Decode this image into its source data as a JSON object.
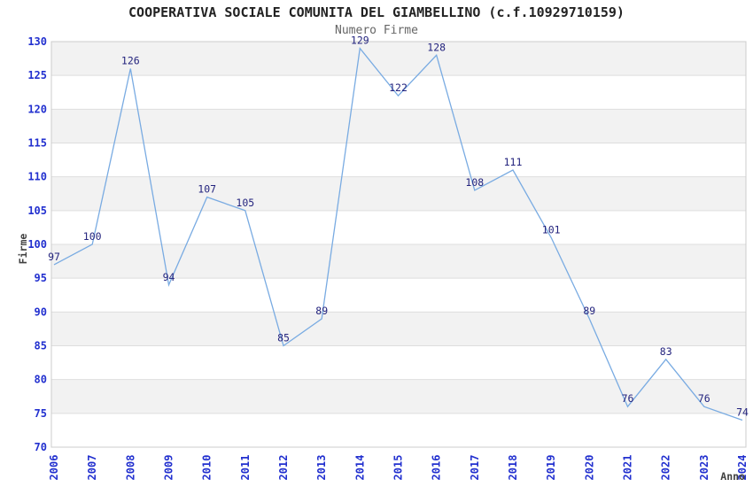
{
  "title": "COOPERATIVA SOCIALE COMUNITA DEL GIAMBELLINO (c.f.10929710159)",
  "subtitle": "Numero Firme",
  "chart_data": {
    "type": "line",
    "title": "COOPERATIVA SOCIALE COMUNITA DEL GIAMBELLINO (c.f.10929710159)",
    "subtitle": "Numero Firme",
    "xlabel": "Anno",
    "ylabel": "Firme",
    "categories": [
      "2006",
      "2007",
      "2008",
      "2009",
      "2010",
      "2011",
      "2012",
      "2013",
      "2014",
      "2015",
      "2016",
      "2017",
      "2018",
      "2019",
      "2020",
      "2021",
      "2022",
      "2023",
      "2024"
    ],
    "values": [
      97,
      100,
      126,
      94,
      107,
      105,
      85,
      89,
      129,
      122,
      128,
      108,
      111,
      101,
      89,
      76,
      83,
      76,
      74
    ],
    "ylim": [
      70,
      130
    ],
    "ytick_step": 5,
    "yticks": [
      70,
      75,
      80,
      85,
      90,
      95,
      100,
      105,
      110,
      115,
      120,
      125,
      130
    ],
    "grid": "horizontal-bands",
    "legend": "none",
    "point_labels_visible": true,
    "x_tick_rotation": -90,
    "colors": {
      "line": "#79abe2",
      "tick_label": "#2230cf",
      "point_label": "#24247e",
      "band_gray": "#f2f2f2",
      "band_white": "#ffffff",
      "gridline": "#dedede",
      "plot_border": "#cccccc",
      "title": "#222222",
      "subtitle": "#666666",
      "axis_name": "#404040"
    }
  }
}
